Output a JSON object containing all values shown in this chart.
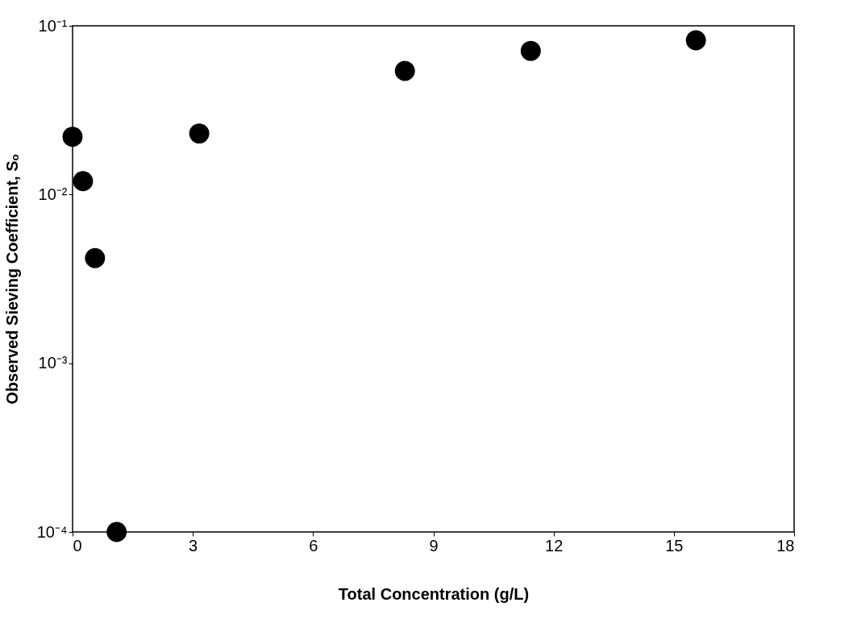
{
  "chart_data": {
    "type": "scatter",
    "xlabel": "Total Concentration (g/L)",
    "ylabel": "Observed Sieving Coefficient, Sₒ",
    "x": [
      0,
      0.26,
      0.56,
      1.1,
      3.16,
      8.29,
      11.43,
      15.55
    ],
    "series": [
      {
        "color": "#000000",
        "values": [
          0.022,
          0.012,
          0.0042,
          0.0001,
          0.023,
          0.054,
          0.071,
          0.082
        ]
      }
    ],
    "xlim": [
      0,
      18
    ],
    "xticks": [
      0,
      3,
      6,
      9,
      12,
      15,
      18
    ],
    "ylim": [
      0.0001,
      0.1
    ],
    "yticks": [
      {
        "value": 0.0001,
        "label": "10⁻⁴"
      },
      {
        "value": 0.001,
        "label": "10⁻³"
      },
      {
        "value": 0.01,
        "label": "10⁻²"
      },
      {
        "value": 0.1,
        "label": "10⁻¹"
      }
    ],
    "log": "y",
    "grid": false
  }
}
